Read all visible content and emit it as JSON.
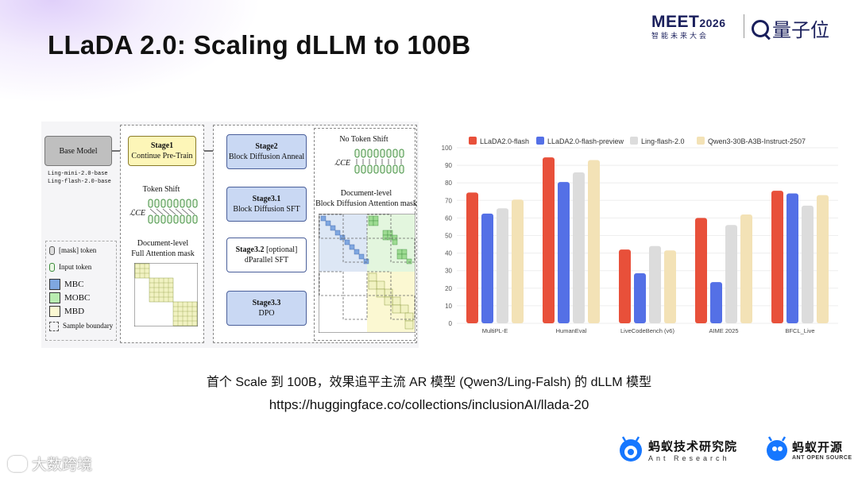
{
  "slide": {
    "title": "LLaDA 2.0: Scaling dLLM to 100B",
    "caption_line1": "首个 Scale 到 100B，效果追平主流 AR 模型 (Qwen3/Ling-Falsh) 的 dLLM 模型",
    "caption_line2": "https://huggingface.co/collections/inclusionAI/llada-20"
  },
  "header": {
    "meet_main": "MEET",
    "meet_year": "2026",
    "meet_sub": "智能未来大会",
    "qbit_name": "量子位"
  },
  "diagram": {
    "base_model": "Base Model",
    "base_notes": [
      "Ling-mini-2.0-base",
      "Ling-flash-2.0-base"
    ],
    "stage1_title": "Stage1",
    "stage1_sub": "Continue Pre-Train",
    "token_shift": "Token Shift",
    "lce": "ℒCE",
    "doc_full_1": "Document-level",
    "doc_full_2": "Full Attention mask",
    "stage2_title": "Stage2",
    "stage2_sub": "Block Diffusion Anneal",
    "stage31_title": "Stage3.1",
    "stage31_sub": "Block Diffusion SFT",
    "stage32_title": "Stage3.2",
    "stage32_opt": "[optional]",
    "stage32_sub": "dParallel SFT",
    "stage33_title": "Stage3.3",
    "stage33_sub": "DPO",
    "no_token_shift": "No Token Shift",
    "doc_block_1": "Document-level",
    "doc_block_2": "Block Diffusion Attention mask",
    "legend": {
      "mask_token": "[mask] token",
      "input_token": "Input token",
      "mbc": "MBC",
      "mobc": "MOBC",
      "mbd": "MBD",
      "sample_boundary": "Sample boundary"
    }
  },
  "chart_data": {
    "type": "bar",
    "categories": [
      "MultiPL-E",
      "HumanEval",
      "LiveCodeBench (v6)",
      "AIME 2025",
      "BFCL_Live"
    ],
    "series": [
      {
        "name": "LLaDA2.0-flash",
        "color": "#e8503a",
        "values": [
          74.5,
          94.5,
          42,
          60,
          75.5
        ]
      },
      {
        "name": "LLaDA2.0-flash-preview",
        "color": "#5470e6",
        "values": [
          62.5,
          80.5,
          28.5,
          23.5,
          74
        ]
      },
      {
        "name": "Ling-flash-2.0",
        "color": "#dcdcdc",
        "values": [
          65.5,
          86,
          44,
          56,
          67
        ]
      },
      {
        "name": "Qwen3-30B-A3B-Instruct-2507",
        "color": "#f3e2b6",
        "values": [
          70.5,
          93,
          41.5,
          62,
          73
        ]
      }
    ],
    "yticks": [
      "0",
      "10",
      "20",
      "30",
      "40",
      "50",
      "60",
      "70",
      "80",
      "90",
      "100"
    ],
    "ylim": [
      0,
      100
    ],
    "grid": true,
    "legend_position": "top"
  },
  "footer": {
    "ant_research_cn": "蚂蚁技术研究院",
    "ant_research_en": "Ant Research",
    "ant_oss_cn": "蚂蚁开源",
    "ant_oss_en": "ANT OPEN SOURCE",
    "watermark": "大数跨境"
  }
}
